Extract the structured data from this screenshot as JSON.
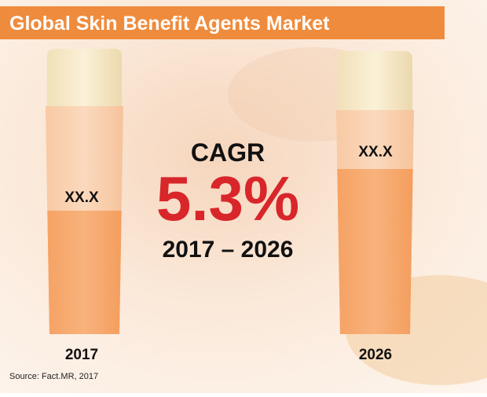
{
  "header": {
    "title": "Global Skin Benefit Agents Market"
  },
  "bottles": [
    {
      "label": "XX.X",
      "year": "2017"
    },
    {
      "label": "XX.X",
      "year": "2026"
    }
  ],
  "cagr": {
    "label": "CAGR",
    "value": "5.3%",
    "period": "2017 – 2026"
  },
  "source": "Source: Fact.MR, 2017"
}
